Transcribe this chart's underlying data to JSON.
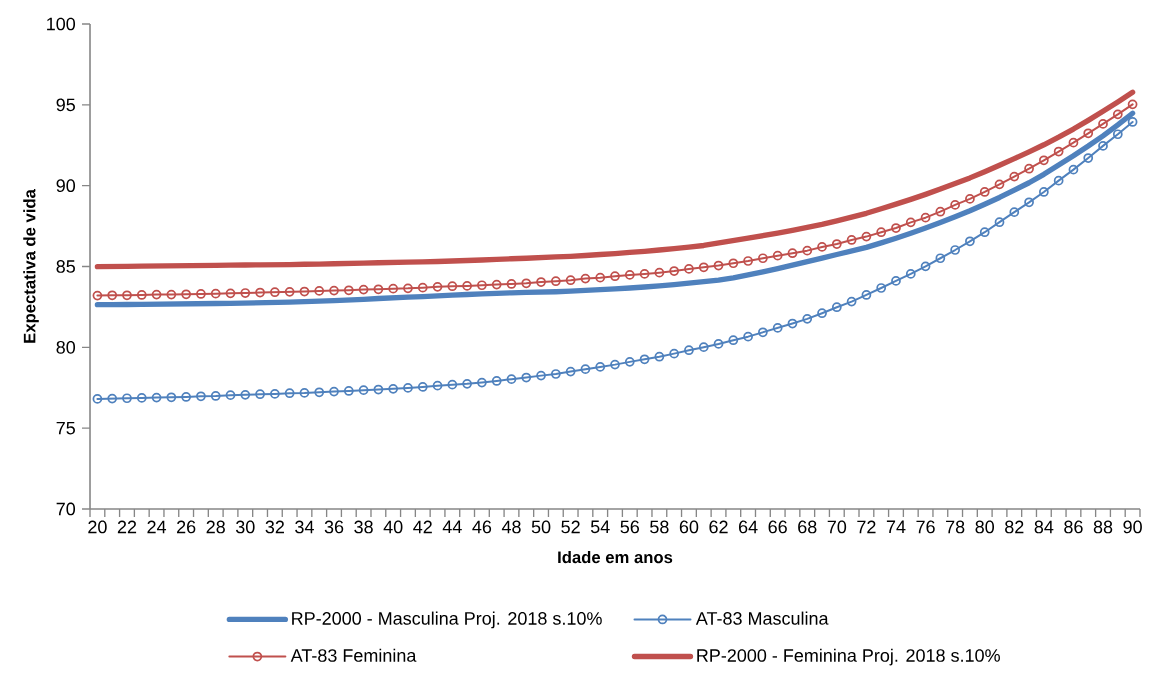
{
  "chart_data": {
    "type": "line",
    "xlabel": "Idade em anos",
    "ylabel": "Expectativa de vida",
    "categories": [
      "20",
      null,
      "22",
      null,
      "24",
      null,
      "26",
      null,
      "28",
      null,
      "30",
      null,
      "32",
      null,
      "34",
      null,
      "36",
      null,
      "38",
      null,
      "40",
      null,
      "42",
      null,
      "44",
      null,
      "46",
      null,
      "48",
      null,
      "50",
      null,
      "52",
      null,
      "54",
      null,
      "56",
      null,
      "58",
      null,
      "60",
      null,
      "62",
      null,
      "64",
      null,
      "66",
      null,
      "68",
      null,
      "70",
      null,
      "72",
      null,
      "74",
      null,
      "76",
      null,
      "78",
      null,
      "80",
      null,
      "82",
      null,
      "84",
      null,
      "86",
      null,
      "88",
      null,
      "90"
    ],
    "ylim": [
      70,
      100
    ],
    "yticks": [
      70,
      75,
      80,
      85,
      90,
      95,
      100
    ],
    "grid": false,
    "legend": "bottom",
    "line_style": "solid",
    "series": [
      {
        "name": "RP-2000 - Masculina Proj. 2018  s.10%",
        "color": "#4f81bd",
        "marker": "none",
        "values": [
          82.64,
          82.64,
          82.65,
          82.66,
          82.67,
          82.68,
          82.69,
          82.7,
          82.71,
          82.72,
          82.74,
          82.76,
          82.78,
          82.8,
          82.83,
          82.86,
          82.89,
          82.93,
          82.97,
          83.02,
          83.06,
          83.1,
          83.14,
          83.18,
          83.23,
          83.27,
          83.31,
          83.34,
          83.37,
          83.4,
          83.42,
          83.44,
          83.48,
          83.52,
          83.57,
          83.62,
          83.67,
          83.73,
          83.8,
          83.88,
          83.97,
          84.06,
          84.16,
          84.3,
          84.48,
          84.67,
          84.87,
          85.08,
          85.3,
          85.52,
          85.74,
          85.96,
          86.18,
          86.46,
          86.75,
          87.06,
          87.38,
          87.72,
          88.08,
          88.45,
          88.85,
          89.27,
          89.72,
          90.18,
          90.7,
          91.28,
          91.85,
          92.45,
          93.08,
          93.76,
          94.48
        ]
      },
      {
        "name": "AT-83 Masculina",
        "color": "#4f81bd",
        "marker": "circle",
        "values": [
          76.81,
          76.83,
          76.85,
          76.87,
          76.89,
          76.91,
          76.93,
          76.97,
          76.99,
          77.04,
          77.06,
          77.1,
          77.12,
          77.16,
          77.18,
          77.22,
          77.26,
          77.3,
          77.35,
          77.39,
          77.43,
          77.49,
          77.55,
          77.63,
          77.69,
          77.74,
          77.82,
          77.92,
          78.03,
          78.13,
          78.25,
          78.35,
          78.5,
          78.65,
          78.79,
          78.93,
          79.1,
          79.26,
          79.42,
          79.61,
          79.82,
          80.01,
          80.21,
          80.44,
          80.66,
          80.93,
          81.2,
          81.47,
          81.76,
          82.11,
          82.48,
          82.83,
          83.24,
          83.67,
          84.11,
          84.54,
          85.01,
          85.51,
          86.02,
          86.56,
          87.12,
          87.74,
          88.36,
          88.97,
          89.61,
          90.31,
          90.99,
          91.71,
          92.46,
          93.18,
          93.94
        ]
      },
      {
        "name": "AT-83 Feminina",
        "color": "#c0504d",
        "marker": "circle",
        "values": [
          83.2,
          83.22,
          83.22,
          83.24,
          83.26,
          83.26,
          83.28,
          83.3,
          83.32,
          83.34,
          83.36,
          83.39,
          83.41,
          83.43,
          83.45,
          83.49,
          83.51,
          83.53,
          83.57,
          83.59,
          83.63,
          83.65,
          83.69,
          83.74,
          83.78,
          83.8,
          83.84,
          83.88,
          83.92,
          83.96,
          84.04,
          84.09,
          84.15,
          84.25,
          84.31,
          84.4,
          84.48,
          84.54,
          84.62,
          84.72,
          84.85,
          84.95,
          85.06,
          85.2,
          85.34,
          85.51,
          85.67,
          85.82,
          85.98,
          86.21,
          86.39,
          86.64,
          86.85,
          87.12,
          87.38,
          87.73,
          88.02,
          88.39,
          88.81,
          89.18,
          89.61,
          90.08,
          90.56,
          91.05,
          91.57,
          92.11,
          92.66,
          93.24,
          93.82,
          94.41,
          95.03
        ]
      },
      {
        "name": "RP-2000 - Feminina Proj. 2018  s.10%",
        "color": "#c0504d",
        "marker": "none",
        "values": [
          84.99,
          85.0,
          85.01,
          85.02,
          85.03,
          85.04,
          85.05,
          85.06,
          85.07,
          85.08,
          85.09,
          85.1,
          85.11,
          85.12,
          85.14,
          85.15,
          85.17,
          85.19,
          85.21,
          85.23,
          85.25,
          85.27,
          85.29,
          85.31,
          85.34,
          85.37,
          85.4,
          85.44,
          85.48,
          85.51,
          85.55,
          85.59,
          85.63,
          85.68,
          85.74,
          85.8,
          85.87,
          85.94,
          86.02,
          86.1,
          86.2,
          86.3,
          86.45,
          86.6,
          86.75,
          86.91,
          87.07,
          87.24,
          87.42,
          87.6,
          87.82,
          88.05,
          88.29,
          88.57,
          88.86,
          89.15,
          89.46,
          89.79,
          90.13,
          90.48,
          90.86,
          91.26,
          91.67,
          92.09,
          92.53,
          93.0,
          93.5,
          94.04,
          94.6,
          95.18,
          95.78
        ]
      }
    ]
  }
}
